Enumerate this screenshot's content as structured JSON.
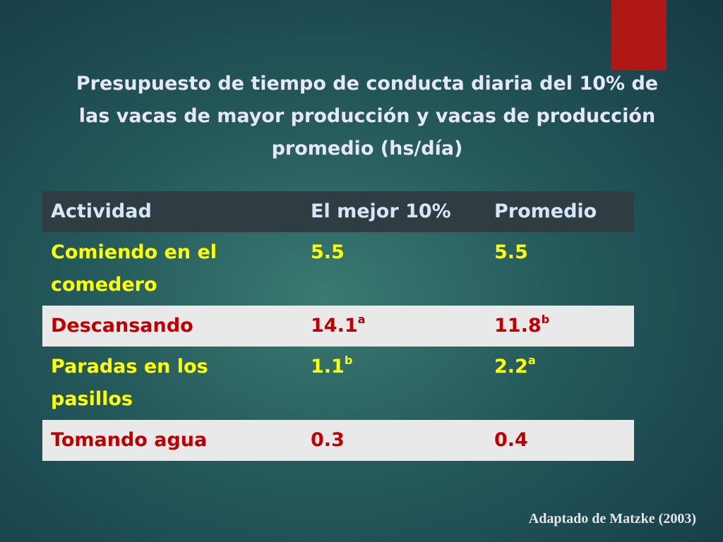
{
  "slide": {
    "title": [
      "Presupuesto de tiempo de conducta diaria del 10% de",
      "las vacas de mayor producción y vacas de producción",
      "promedio (hs/día)"
    ],
    "table": {
      "header": [
        "Actividad",
        "El mejor 10%",
        "Promedio"
      ],
      "rows": [
        [
          {
            "text": "Comiendo en el comedero"
          },
          {
            "text": "5.5"
          },
          {
            "text": "5.5"
          }
        ],
        [
          {
            "text": "Descansando"
          },
          {
            "text": "14.1",
            "sup": "a"
          },
          {
            "text": "11.8",
            "sup": "b"
          }
        ],
        [
          {
            "text": "Paradas en los pasillos"
          },
          {
            "text": "1.1",
            "sup": "b"
          },
          {
            "text": "2.2",
            "sup": "a"
          }
        ],
        [
          {
            "text": "Tomando agua"
          },
          {
            "text": "0.3"
          },
          {
            "text": "0.4"
          }
        ]
      ]
    },
    "source": "Adaptado de Matzke (2003)"
  }
}
